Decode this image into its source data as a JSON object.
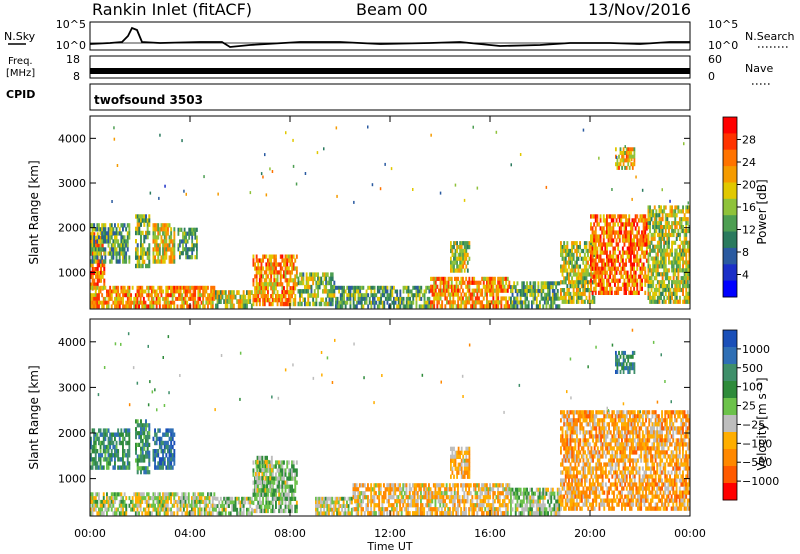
{
  "header": {
    "station": "Rankin Inlet (fitACF)",
    "beam": "Beam 00",
    "date": "13/Nov/2016"
  },
  "noise_panel": {
    "left_label": "N.Sky",
    "right_label": "N.Search",
    "left_ticks": [
      "10^5",
      "10^0"
    ],
    "right_ticks": [
      "10^5",
      "10^0"
    ]
  },
  "freq_panel": {
    "left_label_1": "Freq.",
    "left_label_2": "[MHz]",
    "left_ticks": [
      "18",
      "8"
    ],
    "right_label": "Nave",
    "right_ticks": [
      "60",
      "0"
    ]
  },
  "cpid_panel": {
    "label": "CPID",
    "value": "twofsound 3503"
  },
  "axes": {
    "x_ticks": [
      "00:00",
      "04:00",
      "08:00",
      "12:00",
      "16:00",
      "20:00",
      "00:00"
    ],
    "x_label": "Time UT",
    "y_ticks": [
      "1000",
      "2000",
      "3000",
      "4000"
    ],
    "y_label": "Slant Range [km]"
  },
  "colorbars": {
    "power": {
      "label": "Power [dB]",
      "ticks": [
        "28",
        "24",
        "20",
        "16",
        "12",
        "8",
        "4"
      ],
      "colors": [
        "#ff0000",
        "#ff3300",
        "#ff7300",
        "#f59b00",
        "#e1c800",
        "#8fc23a",
        "#4d9e52",
        "#2a7a5e",
        "#2a5aa0",
        "#1b2fc8",
        "#0000ff"
      ]
    },
    "velocity": {
      "label": "Velocity [m s⁻¹]",
      "ticks": [
        "1000",
        "500",
        "100",
        "25",
        "−25",
        "−100",
        "−500",
        "−1000"
      ],
      "colors": [
        "#1a4fb8",
        "#2f6fb5",
        "#3f8f6a",
        "#2e8b3a",
        "#6cc24a",
        "#bdbdbd",
        "#ffae00",
        "#ff8800",
        "#ff5a00",
        "#ff0000"
      ]
    }
  },
  "chart_data": [
    {
      "type": "heatmap",
      "title": "Power [dB]",
      "xlabel": "Time UT",
      "ylabel": "Slant Range [km]",
      "xlim": [
        "00:00",
        "24:00"
      ],
      "ylim": [
        180,
        4500
      ],
      "zlim": [
        0,
        30
      ],
      "patches": [
        {
          "t": [
            0.0,
            0.6
          ],
          "r": [
            600,
            1900
          ],
          "power": 24
        },
        {
          "t": [
            0.0,
            1.6
          ],
          "r": [
            1200,
            2100
          ],
          "power": 12
        },
        {
          "t": [
            0.0,
            5.0
          ],
          "r": [
            200,
            700
          ],
          "power": 22
        },
        {
          "t": [
            1.8,
            2.4
          ],
          "r": [
            1100,
            2300
          ],
          "power": 14
        },
        {
          "t": [
            2.5,
            3.4
          ],
          "r": [
            1200,
            2100
          ],
          "power": 18
        },
        {
          "t": [
            3.5,
            4.3
          ],
          "r": [
            1300,
            2000
          ],
          "power": 12
        },
        {
          "t": [
            5.0,
            6.5
          ],
          "r": [
            200,
            600
          ],
          "power": 16
        },
        {
          "t": [
            6.5,
            8.3
          ],
          "r": [
            250,
            1400
          ],
          "power": 22
        },
        {
          "t": [
            8.3,
            9.8
          ],
          "r": [
            250,
            1000
          ],
          "power": 14
        },
        {
          "t": [
            9.8,
            13.6
          ],
          "r": [
            200,
            700
          ],
          "power": 12
        },
        {
          "t": [
            13.6,
            16.8
          ],
          "r": [
            200,
            900
          ],
          "power": 22
        },
        {
          "t": [
            14.4,
            15.2
          ],
          "r": [
            1000,
            1700
          ],
          "power": 16
        },
        {
          "t": [
            16.8,
            18.8
          ],
          "r": [
            200,
            800
          ],
          "power": 12
        },
        {
          "t": [
            18.8,
            20.2
          ],
          "r": [
            300,
            1700
          ],
          "power": 16
        },
        {
          "t": [
            20.0,
            22.3
          ],
          "r": [
            500,
            2300
          ],
          "power": 24
        },
        {
          "t": [
            21.0,
            21.8
          ],
          "r": [
            3300,
            3800
          ],
          "power": 20
        },
        {
          "t": [
            22.3,
            24.0
          ],
          "r": [
            300,
            2500
          ],
          "power": 16
        }
      ]
    },
    {
      "type": "heatmap",
      "title": "Velocity [m s⁻¹]",
      "xlabel": "Time UT",
      "ylabel": "Slant Range [km]",
      "xlim": [
        "00:00",
        "24:00"
      ],
      "ylim": [
        180,
        4500
      ],
      "zlim": [
        -1000,
        1000
      ],
      "patches": [
        {
          "t": [
            0.0,
            1.6
          ],
          "r": [
            1200,
            2100
          ],
          "velocity": 500
        },
        {
          "t": [
            0.0,
            5.0
          ],
          "r": [
            200,
            700
          ],
          "velocity": -50
        },
        {
          "t": [
            1.8,
            2.4
          ],
          "r": [
            1100,
            2300
          ],
          "velocity": 500
        },
        {
          "t": [
            2.5,
            3.4
          ],
          "r": [
            1200,
            2100
          ],
          "velocity": 800
        },
        {
          "t": [
            5.0,
            6.5
          ],
          "r": [
            200,
            600
          ],
          "velocity": 50
        },
        {
          "t": [
            6.5,
            8.3
          ],
          "r": [
            250,
            1400
          ],
          "velocity": 100
        },
        {
          "t": [
            6.6,
            7.3
          ],
          "r": [
            700,
            1500
          ],
          "velocity": 0
        },
        {
          "t": [
            9.0,
            10.5
          ],
          "r": [
            200,
            600
          ],
          "velocity": -100
        },
        {
          "t": [
            10.5,
            16.8
          ],
          "r": [
            200,
            900
          ],
          "velocity": -300
        },
        {
          "t": [
            14.4,
            15.2
          ],
          "r": [
            1000,
            1700
          ],
          "velocity": -300
        },
        {
          "t": [
            16.8,
            18.8
          ],
          "r": [
            200,
            800
          ],
          "velocity": 50
        },
        {
          "t": [
            18.8,
            24.0
          ],
          "r": [
            300,
            2500
          ],
          "velocity": -400
        },
        {
          "t": [
            21.0,
            21.8
          ],
          "r": [
            3300,
            3800
          ],
          "velocity": 600
        }
      ]
    }
  ]
}
